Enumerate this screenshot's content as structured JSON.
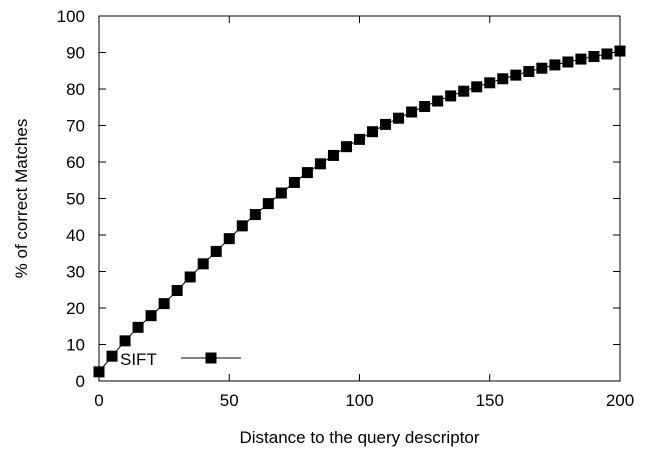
{
  "chart_data": {
    "type": "line",
    "title": "",
    "xlabel": "Distance to the query descriptor",
    "ylabel": "% of correct Matches",
    "xlim": [
      0,
      200
    ],
    "ylim": [
      0,
      100
    ],
    "x_ticks": [
      "0",
      "50",
      "100",
      "150",
      "200"
    ],
    "y_ticks": [
      "0",
      "10",
      "20",
      "30",
      "40",
      "50",
      "60",
      "70",
      "80",
      "90",
      "100"
    ],
    "grid": false,
    "legend_position": "bottom-left",
    "series": [
      {
        "name": "SIFT",
        "color": "#000000",
        "marker": "square",
        "x": [
          0,
          5,
          10,
          15,
          20,
          25,
          30,
          35,
          40,
          45,
          50,
          55,
          60,
          65,
          70,
          75,
          80,
          85,
          90,
          95,
          100,
          105,
          110,
          115,
          120,
          125,
          130,
          135,
          140,
          145,
          150,
          155,
          160,
          165,
          170,
          175,
          180,
          185,
          190,
          195,
          200
        ],
        "y": [
          2.5,
          6.8,
          11.0,
          14.7,
          17.9,
          21.2,
          24.8,
          28.5,
          32.1,
          35.5,
          39.0,
          42.5,
          45.6,
          48.6,
          51.5,
          54.4,
          57.1,
          59.5,
          61.8,
          64.2,
          66.2,
          68.3,
          70.3,
          72.0,
          73.7,
          75.2,
          76.7,
          78.1,
          79.4,
          80.6,
          81.7,
          82.8,
          83.8,
          84.8,
          85.7,
          86.6,
          87.4,
          88.2,
          88.9,
          89.6,
          90.4
        ]
      }
    ]
  }
}
